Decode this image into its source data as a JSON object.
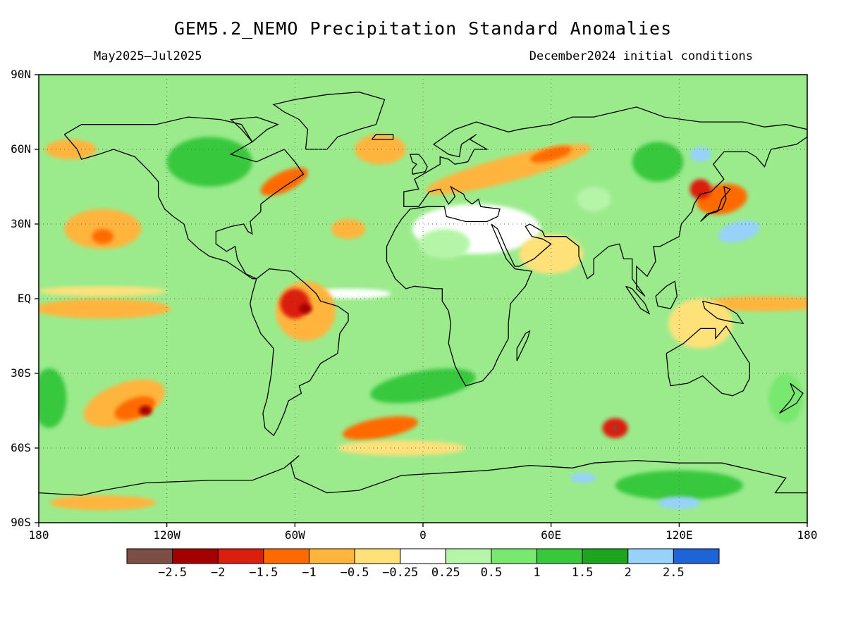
{
  "title": "GEM5.2_NEMO Precipitation Standard Anomalies",
  "period": "May2025–Jul2025",
  "init": "December2024 initial conditions",
  "lat_axis": [
    {
      "value": 90,
      "label": "90N"
    },
    {
      "value": 60,
      "label": "60N"
    },
    {
      "value": 30,
      "label": "30N"
    },
    {
      "value": 0,
      "label": "EQ"
    },
    {
      "value": -30,
      "label": "30S"
    },
    {
      "value": -60,
      "label": "60S"
    },
    {
      "value": -90,
      "label": "90S"
    }
  ],
  "lon_axis": [
    {
      "value": -180,
      "label": "180"
    },
    {
      "value": -120,
      "label": "120W"
    },
    {
      "value": -60,
      "label": "60W"
    },
    {
      "value": 0,
      "label": "0"
    },
    {
      "value": 60,
      "label": "60E"
    },
    {
      "value": 120,
      "label": "120E"
    },
    {
      "value": 180,
      "label": "180"
    }
  ],
  "colorbar": {
    "colors": [
      "#7b4f45",
      "#a50000",
      "#dc1e0f",
      "#ff6a00",
      "#ffb43c",
      "#ffe17a",
      "#ffffff",
      "#b5f5a8",
      "#78e86e",
      "#37c83c",
      "#1ea51e",
      "#96d2fa",
      "#1e64d7"
    ],
    "labels": [
      "−2.5",
      "−2",
      "−1.5",
      "−1",
      "−0.5",
      "−0.25",
      "0.25",
      "0.5",
      "1",
      "1.5",
      "2",
      "2.5"
    ]
  },
  "map": {
    "base_color": "#9beb8c",
    "anomaly_blobs": [
      {
        "lon": -35,
        "lat": 2,
        "rx": 20,
        "ry": 2,
        "color": "#ffffff",
        "rot": 0
      },
      {
        "lon": 160,
        "lat": -2,
        "rx": 30,
        "ry": 3,
        "color": "#ffb43c",
        "rot": 0
      },
      {
        "lon": -150,
        "lat": -4,
        "rx": 32,
        "ry": 4,
        "color": "#ffb43c",
        "rot": 0
      },
      {
        "lon": -150,
        "lat": 3,
        "rx": 30,
        "ry": 2,
        "color": "#ffe17a",
        "rot": 0
      },
      {
        "lon": -55,
        "lat": -5,
        "rx": 14,
        "ry": 12,
        "color": "#ffb43c",
        "rot": 0
      },
      {
        "lon": -60,
        "lat": -2,
        "rx": 7,
        "ry": 6,
        "color": "#dc1e0f",
        "rot": 0
      },
      {
        "lon": -55,
        "lat": -4,
        "rx": 3,
        "ry": 2,
        "color": "#a50000",
        "rot": 0
      },
      {
        "lon": -140,
        "lat": -42,
        "rx": 20,
        "ry": 8,
        "color": "#ffb43c",
        "rot": -20
      },
      {
        "lon": -135,
        "lat": -44,
        "rx": 10,
        "ry": 4,
        "color": "#ff6a00",
        "rot": -20
      },
      {
        "lon": -130,
        "lat": -45,
        "rx": 3,
        "ry": 2,
        "color": "#a50000",
        "rot": 0
      },
      {
        "lon": -20,
        "lat": -52,
        "rx": 18,
        "ry": 4,
        "color": "#ff6a00",
        "rot": -10
      },
      {
        "lon": 90,
        "lat": -52,
        "rx": 6,
        "ry": 4,
        "color": "#dc1e0f",
        "rot": 0
      },
      {
        "lon": 90,
        "lat": -52,
        "rx": 1.5,
        "ry": 1,
        "color": "#7b4f45",
        "rot": 0
      },
      {
        "lon": 40,
        "lat": 52,
        "rx": 40,
        "ry": 5,
        "color": "#ffb43c",
        "rot": -15
      },
      {
        "lon": 60,
        "lat": 58,
        "rx": 10,
        "ry": 2.5,
        "color": "#ff6a00",
        "rot": -15
      },
      {
        "lon": -65,
        "lat": 47,
        "rx": 12,
        "ry": 4,
        "color": "#ff6a00",
        "rot": -25
      },
      {
        "lon": 140,
        "lat": 40,
        "rx": 12,
        "ry": 6,
        "color": "#ff6a00",
        "rot": -10
      },
      {
        "lon": 130,
        "lat": 44,
        "rx": 5,
        "ry": 4,
        "color": "#dc1e0f",
        "rot": 0
      },
      {
        "lon": -150,
        "lat": 28,
        "rx": 18,
        "ry": 8,
        "color": "#ffb43c",
        "rot": 0
      },
      {
        "lon": -150,
        "lat": 25,
        "rx": 5,
        "ry": 3,
        "color": "#ff6a00",
        "rot": 0
      },
      {
        "lon": -35,
        "lat": 28,
        "rx": 8,
        "ry": 4,
        "color": "#ffb43c",
        "rot": 0
      },
      {
        "lon": 25,
        "lat": 28,
        "rx": 30,
        "ry": 10,
        "color": "#ffffff",
        "rot": 0
      },
      {
        "lon": 10,
        "lat": 22,
        "rx": 12,
        "ry": 6,
        "color": "#b5f5a8",
        "rot": 0
      },
      {
        "lon": 120,
        "lat": -75,
        "rx": 30,
        "ry": 6,
        "color": "#37c83c",
        "rot": 0
      },
      {
        "lon": 120,
        "lat": -82,
        "rx": 10,
        "ry": 2.5,
        "color": "#96d2fa",
        "rot": 0
      },
      {
        "lon": 75,
        "lat": -72,
        "rx": 6,
        "ry": 2,
        "color": "#96d2fa",
        "rot": 0
      },
      {
        "lon": 148,
        "lat": 27,
        "rx": 10,
        "ry": 4,
        "color": "#96d2fa",
        "rot": -15
      },
      {
        "lon": 130,
        "lat": 58,
        "rx": 5,
        "ry": 3,
        "color": "#96d2fa",
        "rot": 0
      },
      {
        "lon": -150,
        "lat": -82,
        "rx": 25,
        "ry": 3,
        "color": "#ffb43c",
        "rot": 0
      },
      {
        "lon": -10,
        "lat": -60,
        "rx": 30,
        "ry": 3,
        "color": "#ffe17a",
        "rot": 0
      },
      {
        "lon": 130,
        "lat": -10,
        "rx": 15,
        "ry": 10,
        "color": "#ffe17a",
        "rot": 0
      },
      {
        "lon": 60,
        "lat": 18,
        "rx": 15,
        "ry": 8,
        "color": "#ffe17a",
        "rot": 0
      },
      {
        "lon": -100,
        "lat": 55,
        "rx": 20,
        "ry": 10,
        "color": "#37c83c",
        "rot": 0
      },
      {
        "lon": 0,
        "lat": -35,
        "rx": 25,
        "ry": 6,
        "color": "#37c83c",
        "rot": -10
      },
      {
        "lon": 110,
        "lat": 55,
        "rx": 12,
        "ry": 8,
        "color": "#37c83c",
        "rot": 0
      },
      {
        "lon": -165,
        "lat": 60,
        "rx": 12,
        "ry": 4,
        "color": "#ffb43c",
        "rot": 0
      },
      {
        "lon": -175,
        "lat": -40,
        "rx": 8,
        "ry": 12,
        "color": "#37c83c",
        "rot": 0
      },
      {
        "lon": 170,
        "lat": -40,
        "rx": 8,
        "ry": 10,
        "color": "#78e86e",
        "rot": 0
      },
      {
        "lon": -20,
        "lat": 60,
        "rx": 12,
        "ry": 6,
        "color": "#ffb43c",
        "rot": 0
      },
      {
        "lon": 80,
        "lat": 40,
        "rx": 8,
        "ry": 5,
        "color": "#b5f5a8",
        "rot": 0
      }
    ]
  }
}
